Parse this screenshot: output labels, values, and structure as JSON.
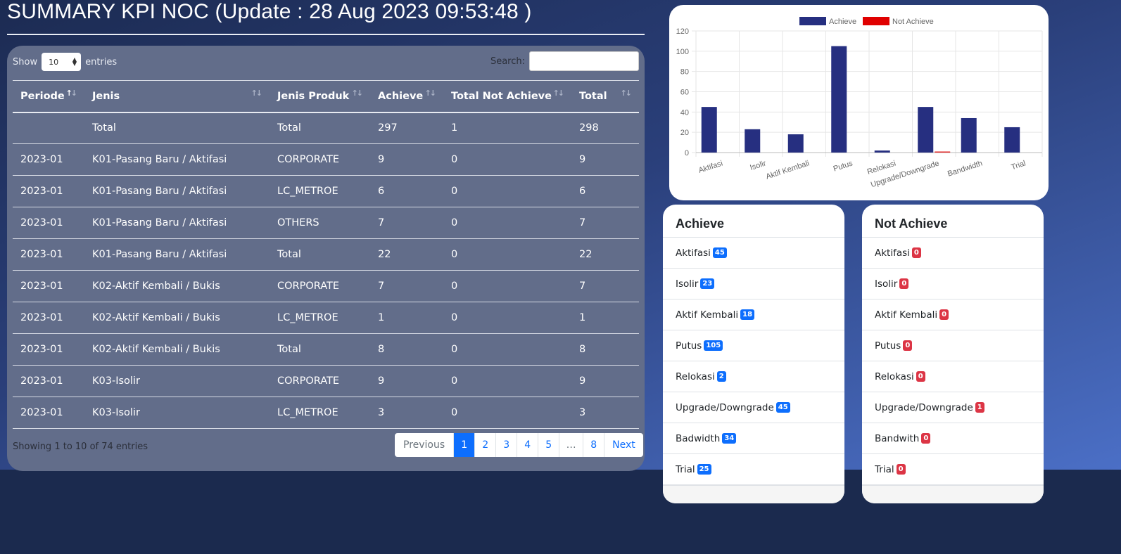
{
  "header": {
    "title": "SUMMARY KPI NOC (Update : 28 Aug 2023 09:53:48 )"
  },
  "table": {
    "length_label_pre": "Show",
    "length_value": "10",
    "length_label_post": "entries",
    "search_label": "Search:",
    "search_value": "",
    "columns": [
      "Periode",
      "Jenis",
      "Jenis Produk",
      "Achieve",
      "Total Not Achieve",
      "Total"
    ],
    "rows": [
      [
        "",
        "Total",
        "Total",
        "297",
        "1",
        "298"
      ],
      [
        "2023-01",
        "K01-Pasang Baru / Aktifasi",
        "CORPORATE",
        "9",
        "0",
        "9"
      ],
      [
        "2023-01",
        "K01-Pasang Baru / Aktifasi",
        "LC_METROE",
        "6",
        "0",
        "6"
      ],
      [
        "2023-01",
        "K01-Pasang Baru / Aktifasi",
        "OTHERS",
        "7",
        "0",
        "7"
      ],
      [
        "2023-01",
        "K01-Pasang Baru / Aktifasi",
        "Total",
        "22",
        "0",
        "22"
      ],
      [
        "2023-01",
        "K02-Aktif Kembali / Bukis",
        "CORPORATE",
        "7",
        "0",
        "7"
      ],
      [
        "2023-01",
        "K02-Aktif Kembali / Bukis",
        "LC_METROE",
        "1",
        "0",
        "1"
      ],
      [
        "2023-01",
        "K02-Aktif Kembali / Bukis",
        "Total",
        "8",
        "0",
        "8"
      ],
      [
        "2023-01",
        "K03-Isolir",
        "CORPORATE",
        "9",
        "0",
        "9"
      ],
      [
        "2023-01",
        "K03-Isolir",
        "LC_METROE",
        "3",
        "0",
        "3"
      ]
    ],
    "info": "Showing 1 to 10 of 74 entries",
    "pagination": {
      "previous": "Previous",
      "pages": [
        "1",
        "2",
        "3",
        "4",
        "5",
        "…",
        "8"
      ],
      "current": "1",
      "next": "Next"
    }
  },
  "chart_data": {
    "type": "bar",
    "categories": [
      "Aktifasi",
      "Isolir",
      "Aktif Kembali",
      "Putus",
      "Relokasi",
      "Upgrade/Downgrade",
      "Bandwidth",
      "Trial"
    ],
    "series": [
      {
        "name": "Achieve",
        "color": "#262f80",
        "values": [
          45,
          23,
          18,
          105,
          2,
          45,
          34,
          25
        ]
      },
      {
        "name": "Not Achieve",
        "color": "#e00000",
        "values": [
          0,
          0,
          0,
          0,
          0,
          1,
          0,
          0
        ]
      }
    ],
    "ylim": [
      0,
      120
    ],
    "yticks": [
      0,
      20,
      40,
      60,
      80,
      100,
      120
    ],
    "grid": true,
    "legend": "top"
  },
  "achieve_list": {
    "title": "Achieve",
    "items": [
      {
        "label": "Aktifasi",
        "value": "45"
      },
      {
        "label": "Isolir",
        "value": "23"
      },
      {
        "label": "Aktif Kembali",
        "value": "18"
      },
      {
        "label": "Putus",
        "value": "105"
      },
      {
        "label": "Relokasi",
        "value": "2"
      },
      {
        "label": "Upgrade/Downgrade",
        "value": "45"
      },
      {
        "label": "Badwidth",
        "value": "34"
      },
      {
        "label": "Trial",
        "value": "25"
      }
    ]
  },
  "not_achieve_list": {
    "title": "Not Achieve",
    "items": [
      {
        "label": "Aktifasi",
        "value": "0"
      },
      {
        "label": "Isolir",
        "value": "0"
      },
      {
        "label": "Aktif Kembali",
        "value": "0"
      },
      {
        "label": "Putus",
        "value": "0"
      },
      {
        "label": "Relokasi",
        "value": "0"
      },
      {
        "label": "Upgrade/Downgrade",
        "value": "1"
      },
      {
        "label": "Bandwith",
        "value": "0"
      },
      {
        "label": "Trial",
        "value": "0"
      }
    ]
  }
}
